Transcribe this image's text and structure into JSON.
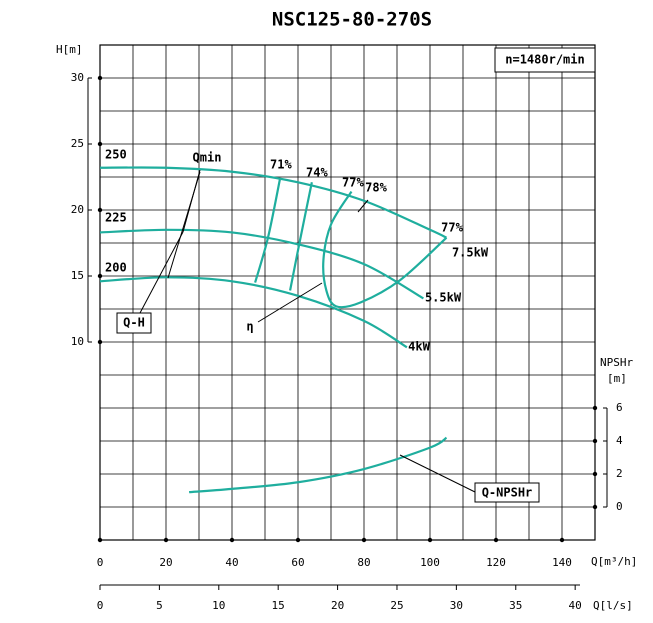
{
  "chart_data": {
    "type": "line",
    "title": "NSC125-80-270S",
    "x_label": "Q[m³/h]",
    "x2_label": "Q[l/s]",
    "y_label": "H[m]",
    "y2_label": [
      "NPSHr",
      "[m]"
    ],
    "xlim": [
      0,
      150
    ],
    "xticks": [
      0,
      20,
      40,
      60,
      80,
      100,
      120,
      140
    ],
    "x2lim": [
      0,
      41.67
    ],
    "x2ticks": [
      0,
      5,
      10,
      15,
      20,
      25,
      30,
      35,
      40
    ],
    "ylim": [
      -5,
      32.5
    ],
    "yticks": [
      10,
      15,
      20,
      25,
      30
    ],
    "y2lim": [
      -2,
      28
    ],
    "y2ticks": [
      0,
      2,
      4,
      6
    ],
    "grid": true,
    "series": [
      {
        "name": "250",
        "color": "#1fae9e",
        "x": [
          0,
          20,
          40,
          60,
          80,
          100,
          105
        ],
        "values": [
          23.2,
          23.2,
          22.9,
          22.1,
          20.7,
          18.5,
          17.9
        ]
      },
      {
        "name": "225",
        "color": "#1fae9e",
        "x": [
          0,
          20,
          40,
          60,
          80,
          98
        ],
        "values": [
          18.3,
          18.5,
          18.3,
          17.4,
          15.9,
          13.3
        ]
      },
      {
        "name": "200",
        "color": "#1fae9e",
        "x": [
          0,
          20,
          40,
          60,
          80,
          93
        ],
        "values": [
          14.6,
          14.9,
          14.6,
          13.5,
          11.6,
          9.6
        ]
      },
      {
        "name": "71%",
        "color": "#1fae9e",
        "x": [
          54.5,
          50.9,
          47
        ],
        "values": [
          22.3,
          17.9,
          14.5
        ]
      },
      {
        "name": "74%",
        "color": "#1fae9e",
        "x": [
          64.2,
          60.6,
          57.6
        ],
        "values": [
          22.1,
          17.7,
          13.9
        ]
      },
      {
        "name": "77%",
        "color": "#1fae9e",
        "x": [
          76.2,
          70,
          67.7,
          68.6,
          71.6,
          79,
          91,
          105
        ],
        "values": [
          21.4,
          18.9,
          16.2,
          13.9,
          12.7,
          13,
          14.7,
          17.9
        ]
      },
      {
        "name": "Q-NPSHr",
        "color": "#1fae9e",
        "axis": "y2",
        "x": [
          27,
          40,
          60,
          80,
          100,
          105
        ],
        "values": [
          0.9,
          1.1,
          1.5,
          2.3,
          3.6,
          4.2
        ]
      }
    ],
    "annotations": [
      "n=1480r/min",
      "Qmin",
      "Q-H",
      "η",
      "77%",
      "78%",
      "7.5kW",
      "5.5kW",
      "4kW"
    ]
  }
}
